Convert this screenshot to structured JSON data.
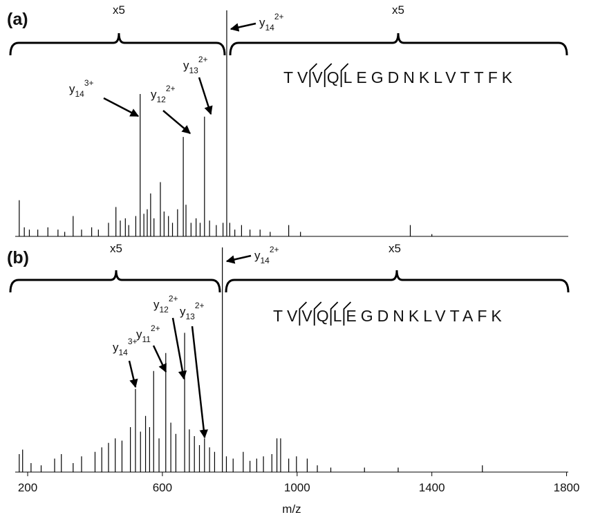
{
  "chart_data": [
    {
      "type": "stem",
      "title": "(a)",
      "color": "#000000",
      "zoom_labels": [
        "x5",
        "x5"
      ],
      "sequence": "TVVQLEGDNKLVTTFK",
      "annotations": [
        {
          "ion": "y",
          "number": "14",
          "charge": "2+"
        },
        {
          "ion": "y",
          "number": "14",
          "charge": "3+"
        },
        {
          "ion": "y",
          "number": "12",
          "charge": "2+"
        },
        {
          "ion": "y",
          "number": "13",
          "charge": "2+"
        }
      ],
      "xlim": [
        163,
        1805
      ],
      "ylim": [
        0,
        100
      ],
      "x": [
        175,
        190,
        205,
        230,
        260,
        290,
        310,
        335,
        360,
        390,
        410,
        440,
        462,
        475,
        490,
        500,
        521,
        534,
        545,
        555,
        565,
        575,
        594,
        605,
        618,
        630,
        645,
        662,
        670,
        685,
        700,
        712,
        725,
        740,
        760,
        780,
        791,
        800,
        815,
        835,
        860,
        890,
        920,
        975,
        1010,
        1336,
        1400
      ],
      "values": [
        16,
        4,
        3,
        3,
        4,
        3,
        2,
        9,
        3,
        4,
        3,
        6,
        13,
        7,
        8,
        5,
        9,
        63,
        10,
        12,
        19,
        8,
        24,
        11,
        9,
        6,
        12,
        44,
        14,
        6,
        8,
        6,
        53,
        7,
        5,
        6,
        100,
        6,
        3,
        5,
        3,
        3,
        2,
        5,
        2,
        5,
        1
      ]
    },
    {
      "type": "stem",
      "title": "(b)",
      "color": "#000000",
      "zoom_labels": [
        "x5",
        "x5"
      ],
      "sequence": "TVVQLEGDNKLVTAFK",
      "annotations": [
        {
          "ion": "y",
          "number": "14",
          "charge": "2+"
        },
        {
          "ion": "y",
          "number": "14",
          "charge": "3+"
        },
        {
          "ion": "y",
          "number": "11",
          "charge": "2+"
        },
        {
          "ion": "y",
          "number": "12",
          "charge": "2+"
        },
        {
          "ion": "y",
          "number": "13",
          "charge": "2+"
        }
      ],
      "xlim": [
        163,
        1805
      ],
      "ylim": [
        0,
        100
      ],
      "xticks": [
        200,
        600,
        1000,
        1400,
        1800
      ],
      "xlabel": "m/z",
      "x": [
        175,
        185,
        210,
        240,
        280,
        300,
        335,
        360,
        400,
        420,
        440,
        460,
        480,
        505,
        520,
        535,
        550,
        562,
        574,
        590,
        610,
        625,
        640,
        666,
        680,
        695,
        710,
        725,
        740,
        755,
        778,
        790,
        810,
        840,
        860,
        880,
        900,
        925,
        940,
        951,
        975,
        998,
        1030,
        1060,
        1100,
        1200,
        1300,
        1550
      ],
      "values": [
        8,
        10,
        4,
        3,
        6,
        8,
        4,
        7,
        9,
        11,
        13,
        15,
        14,
        20,
        37,
        18,
        25,
        20,
        45,
        15,
        53,
        22,
        17,
        62,
        19,
        16,
        12,
        15,
        11,
        9,
        100,
        7,
        6,
        9,
        5,
        6,
        7,
        8,
        15,
        15,
        6,
        7,
        6,
        3,
        2,
        2,
        2,
        3
      ]
    }
  ]
}
